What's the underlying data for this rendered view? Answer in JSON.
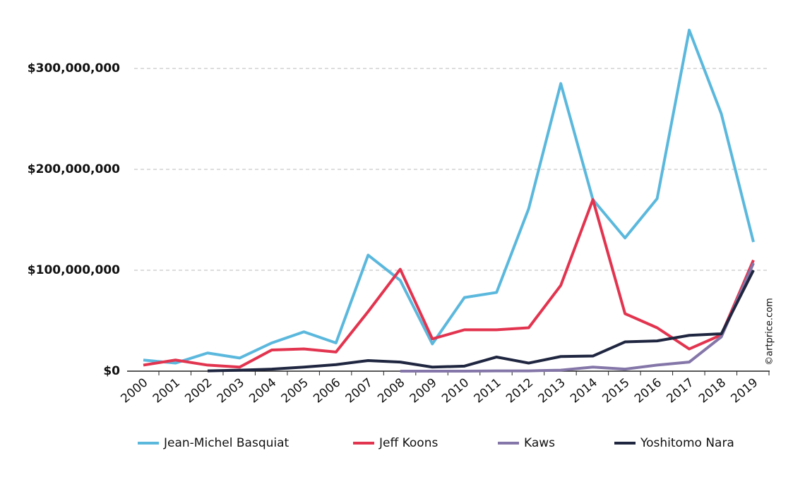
{
  "chart_data": {
    "type": "line",
    "x": [
      2000,
      2001,
      2002,
      2003,
      2004,
      2005,
      2006,
      2007,
      2008,
      2009,
      2010,
      2011,
      2012,
      2013,
      2014,
      2015,
      2016,
      2017,
      2018,
      2019
    ],
    "series": [
      {
        "name": "Jean-Michel Basquiat",
        "color": "#5bb8dd",
        "values": [
          11000000,
          8000000,
          18000000,
          13000000,
          28000000,
          39000000,
          28000000,
          115000000,
          90000000,
          27000000,
          73000000,
          78000000,
          161000000,
          285000000,
          170000000,
          132000000,
          171000000,
          338000000,
          255000000,
          128000000
        ]
      },
      {
        "name": "Jeff Koons",
        "color": "#e2344f",
        "values": [
          6000000,
          11000000,
          6000000,
          4000000,
          21000000,
          22000000,
          19000000,
          59000000,
          101000000,
          32000000,
          41000000,
          41000000,
          43000000,
          85000000,
          170000000,
          57000000,
          43000000,
          22000000,
          36000000,
          110000000
        ]
      },
      {
        "name": "Kaws",
        "color": "#8476a8",
        "values": [
          null,
          null,
          null,
          null,
          null,
          null,
          null,
          null,
          0,
          0,
          0,
          300000,
          300000,
          1000000,
          4000000,
          2000000,
          6000000,
          9000000,
          34000000,
          107000000
        ]
      },
      {
        "name": "Yoshitomo Nara",
        "color": "#1f2640",
        "values": [
          null,
          null,
          300000,
          1000000,
          2000000,
          4000000,
          6500000,
          10500000,
          9000000,
          4000000,
          5000000,
          14000000,
          8000000,
          14500000,
          15000000,
          29000000,
          30000000,
          35500000,
          37000000,
          100000000
        ]
      }
    ],
    "ylim": [
      0,
      350000000
    ],
    "yticks": [
      {
        "value": 0,
        "label": "$0"
      },
      {
        "value": 100000000,
        "label": "$100,000,000"
      },
      {
        "value": 200000000,
        "label": "$200,000,000"
      },
      {
        "value": 300000000,
        "label": "$300,000,000"
      }
    ],
    "grid": true,
    "legend": "bottom",
    "watermark": "©artprice.com"
  }
}
